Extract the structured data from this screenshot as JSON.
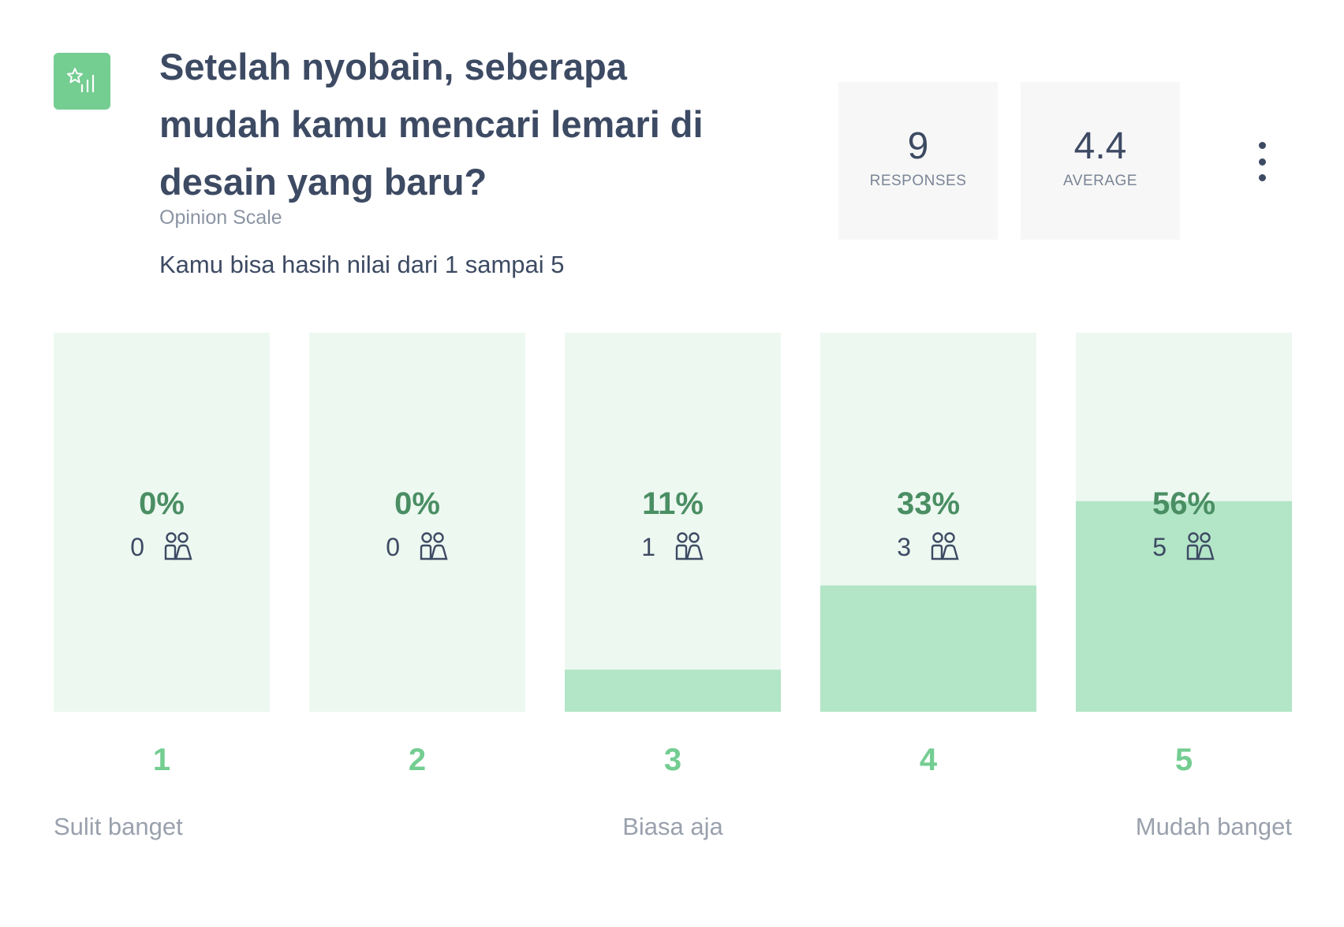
{
  "question": {
    "title": "Setelah nyobain, seberapa mudah kamu mencari lemari di desain yang baru?",
    "type_label": "Opinion Scale",
    "description": "Kamu bisa hasih nilai dari 1 sampai 5",
    "icon": "opinion-scale-icon"
  },
  "stats": {
    "responses": {
      "value": "9",
      "label": "RESPONSES"
    },
    "average": {
      "value": "4.4",
      "label": "AVERAGE"
    }
  },
  "menu": {
    "icon": "more-vertical-icon"
  },
  "colors": {
    "accent": "#74cd91",
    "bar_background": "#edf8f1",
    "bar_fill": "#b3e5c7",
    "percent_text": "#4a8e63",
    "scale_number": "#74cd91",
    "scale_label": "#9aa1ad",
    "text_dark": "#3d4a63"
  },
  "chart_data": {
    "type": "bar",
    "categories": [
      "1",
      "2",
      "3",
      "4",
      "5"
    ],
    "values": [
      0,
      0,
      1,
      3,
      5
    ],
    "percent_labels": [
      "0%",
      "0%",
      "11%",
      "33%",
      "56%"
    ],
    "ylim": [
      0,
      9
    ],
    "scale_labels": {
      "1": "Sulit banget",
      "3": "Biasa aja",
      "5": "Mudah banget"
    },
    "respondents_icon": "people-icon"
  }
}
